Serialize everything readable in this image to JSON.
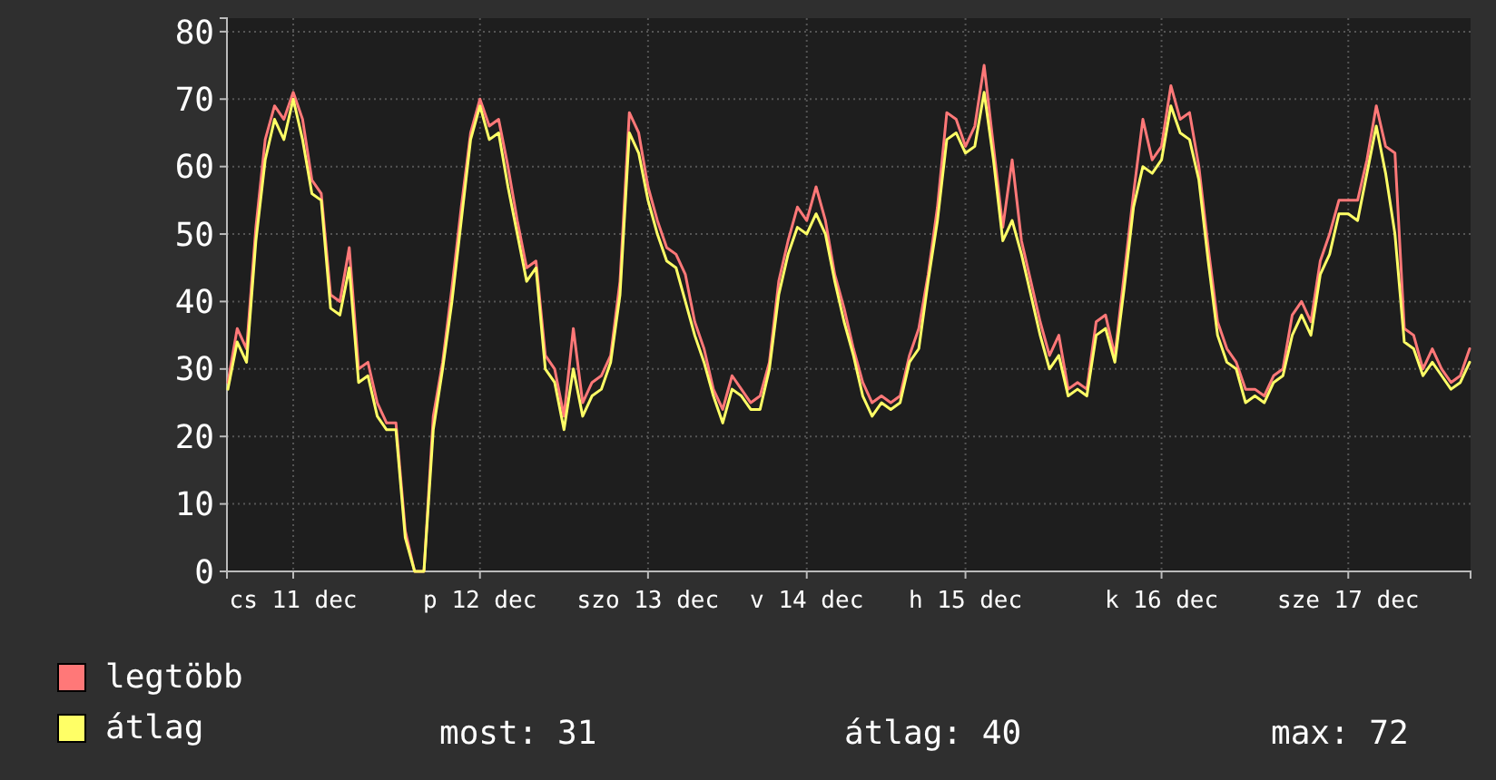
{
  "chart_data": {
    "type": "line",
    "categories": [
      null,
      null,
      null,
      null,
      null,
      null,
      null,
      "cs 11 dec",
      null,
      null,
      null,
      null,
      null,
      null,
      null,
      null,
      null,
      null,
      null,
      null,
      null,
      null,
      null,
      null,
      null,
      null,
      null,
      "p 12 dec",
      null,
      null,
      null,
      null,
      null,
      null,
      null,
      null,
      null,
      null,
      null,
      null,
      null,
      null,
      null,
      null,
      null,
      "szo 13 dec",
      null,
      null,
      null,
      null,
      null,
      null,
      null,
      null,
      null,
      null,
      null,
      null,
      null,
      null,
      null,
      null,
      "v 14 dec",
      null,
      null,
      null,
      null,
      null,
      null,
      null,
      null,
      null,
      null,
      null,
      null,
      null,
      null,
      null,
      null,
      "h 15 dec",
      null,
      null,
      null,
      null,
      null,
      null,
      null,
      null,
      null,
      null,
      null,
      null,
      null,
      null,
      null,
      null,
      null,
      null,
      null,
      null,
      "k 16 dec",
      null,
      null,
      null,
      null,
      null,
      null,
      null,
      null,
      null,
      null,
      null,
      null,
      null,
      null,
      null,
      null,
      null,
      null,
      null,
      "sze 17 dec",
      null,
      null,
      null,
      null,
      null,
      null,
      null,
      null,
      null,
      null,
      null,
      null,
      null
    ],
    "series": [
      {
        "name": "legtöbb",
        "color": "#ff7878",
        "values": [
          28,
          36,
          33,
          51,
          64,
          69,
          67,
          71,
          67,
          58,
          56,
          41,
          40,
          48,
          30,
          31,
          25,
          22,
          22,
          6,
          0,
          0,
          23,
          31,
          42,
          54,
          65,
          70,
          66,
          67,
          60,
          52,
          45,
          46,
          32,
          30,
          23,
          36,
          25,
          28,
          29,
          32,
          43,
          68,
          65,
          57,
          52,
          48,
          47,
          44,
          37,
          33,
          27,
          24,
          29,
          27,
          25,
          26,
          31,
          43,
          49,
          54,
          52,
          57,
          52,
          44,
          39,
          33,
          28,
          25,
          26,
          25,
          26,
          32,
          36,
          44,
          54,
          68,
          67,
          63,
          66,
          75,
          63,
          51,
          61,
          49,
          43,
          37,
          32,
          35,
          27,
          28,
          27,
          37,
          38,
          32,
          44,
          56,
          67,
          61,
          63,
          72,
          67,
          68,
          60,
          48,
          37,
          33,
          31,
          27,
          27,
          26,
          29,
          30,
          38,
          40,
          37,
          46,
          50,
          55,
          55,
          55,
          61,
          69,
          63,
          62,
          36,
          35,
          30,
          33,
          30,
          28,
          29,
          33
        ]
      },
      {
        "name": "átlag",
        "color": "#ffff66",
        "values": [
          27,
          34,
          31,
          49,
          61,
          67,
          64,
          70,
          64,
          56,
          55,
          39,
          38,
          45,
          28,
          29,
          23,
          21,
          21,
          5,
          0,
          0,
          21,
          30,
          40,
          52,
          64,
          69,
          64,
          65,
          57,
          50,
          43,
          45,
          30,
          28,
          21,
          30,
          23,
          26,
          27,
          31,
          41,
          65,
          62,
          55,
          50,
          46,
          45,
          40,
          35,
          31,
          26,
          22,
          27,
          26,
          24,
          24,
          30,
          41,
          47,
          51,
          50,
          53,
          50,
          43,
          37,
          32,
          26,
          23,
          25,
          24,
          25,
          31,
          33,
          43,
          52,
          64,
          65,
          62,
          63,
          71,
          61,
          49,
          52,
          47,
          41,
          35,
          30,
          32,
          26,
          27,
          26,
          35,
          36,
          31,
          42,
          54,
          60,
          59,
          61,
          69,
          65,
          64,
          58,
          46,
          35,
          31,
          30,
          25,
          26,
          25,
          28,
          29,
          35,
          38,
          35,
          44,
          47,
          53,
          53,
          52,
          59,
          66,
          59,
          50,
          34,
          33,
          29,
          31,
          29,
          27,
          28,
          31
        ]
      }
    ],
    "ylim": [
      0,
      82
    ],
    "yticks": [
      0,
      10,
      20,
      30,
      40,
      50,
      60,
      70,
      80
    ],
    "grid": true,
    "legend": "bottom",
    "annotations": [
      "most: 31",
      "átlag: 40",
      "max: 72"
    ]
  }
}
